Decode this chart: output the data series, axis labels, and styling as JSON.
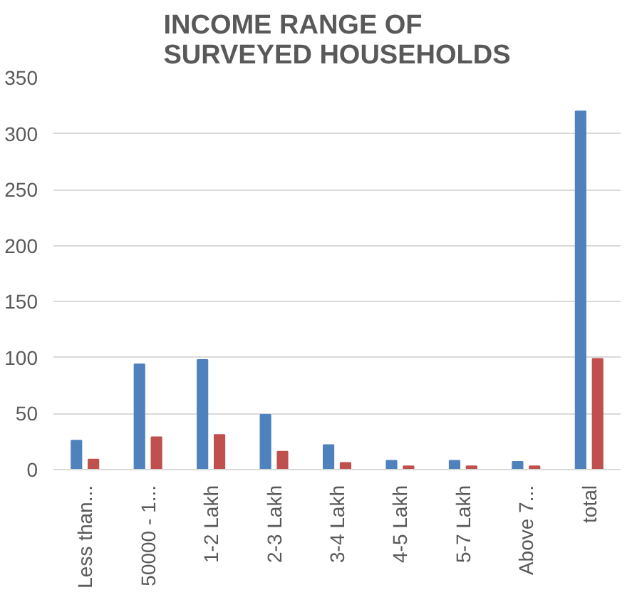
{
  "chart_data": {
    "type": "bar",
    "title": "INCOME RANGE OF\nSURVEYED HOUSEHOLDS",
    "categories": [
      "Less than...",
      "50000 - 1...",
      "1-2 Lakh",
      "2-3 Lakh",
      "3-4 Lakh",
      "4-5 Lakh",
      "5-7 Lakh",
      "Above 7...",
      "total"
    ],
    "series": [
      {
        "color": "#4f81bd",
        "values": [
          26,
          94,
          98,
          49,
          22,
          8,
          8,
          7,
          320
        ]
      },
      {
        "color": "#c0504d",
        "values": [
          9,
          29,
          31,
          16,
          6,
          3,
          3,
          3,
          99
        ]
      }
    ],
    "ylim": [
      0,
      350
    ],
    "yticks": [
      0,
      50,
      100,
      150,
      200,
      250,
      300,
      350
    ],
    "grid": "y"
  }
}
